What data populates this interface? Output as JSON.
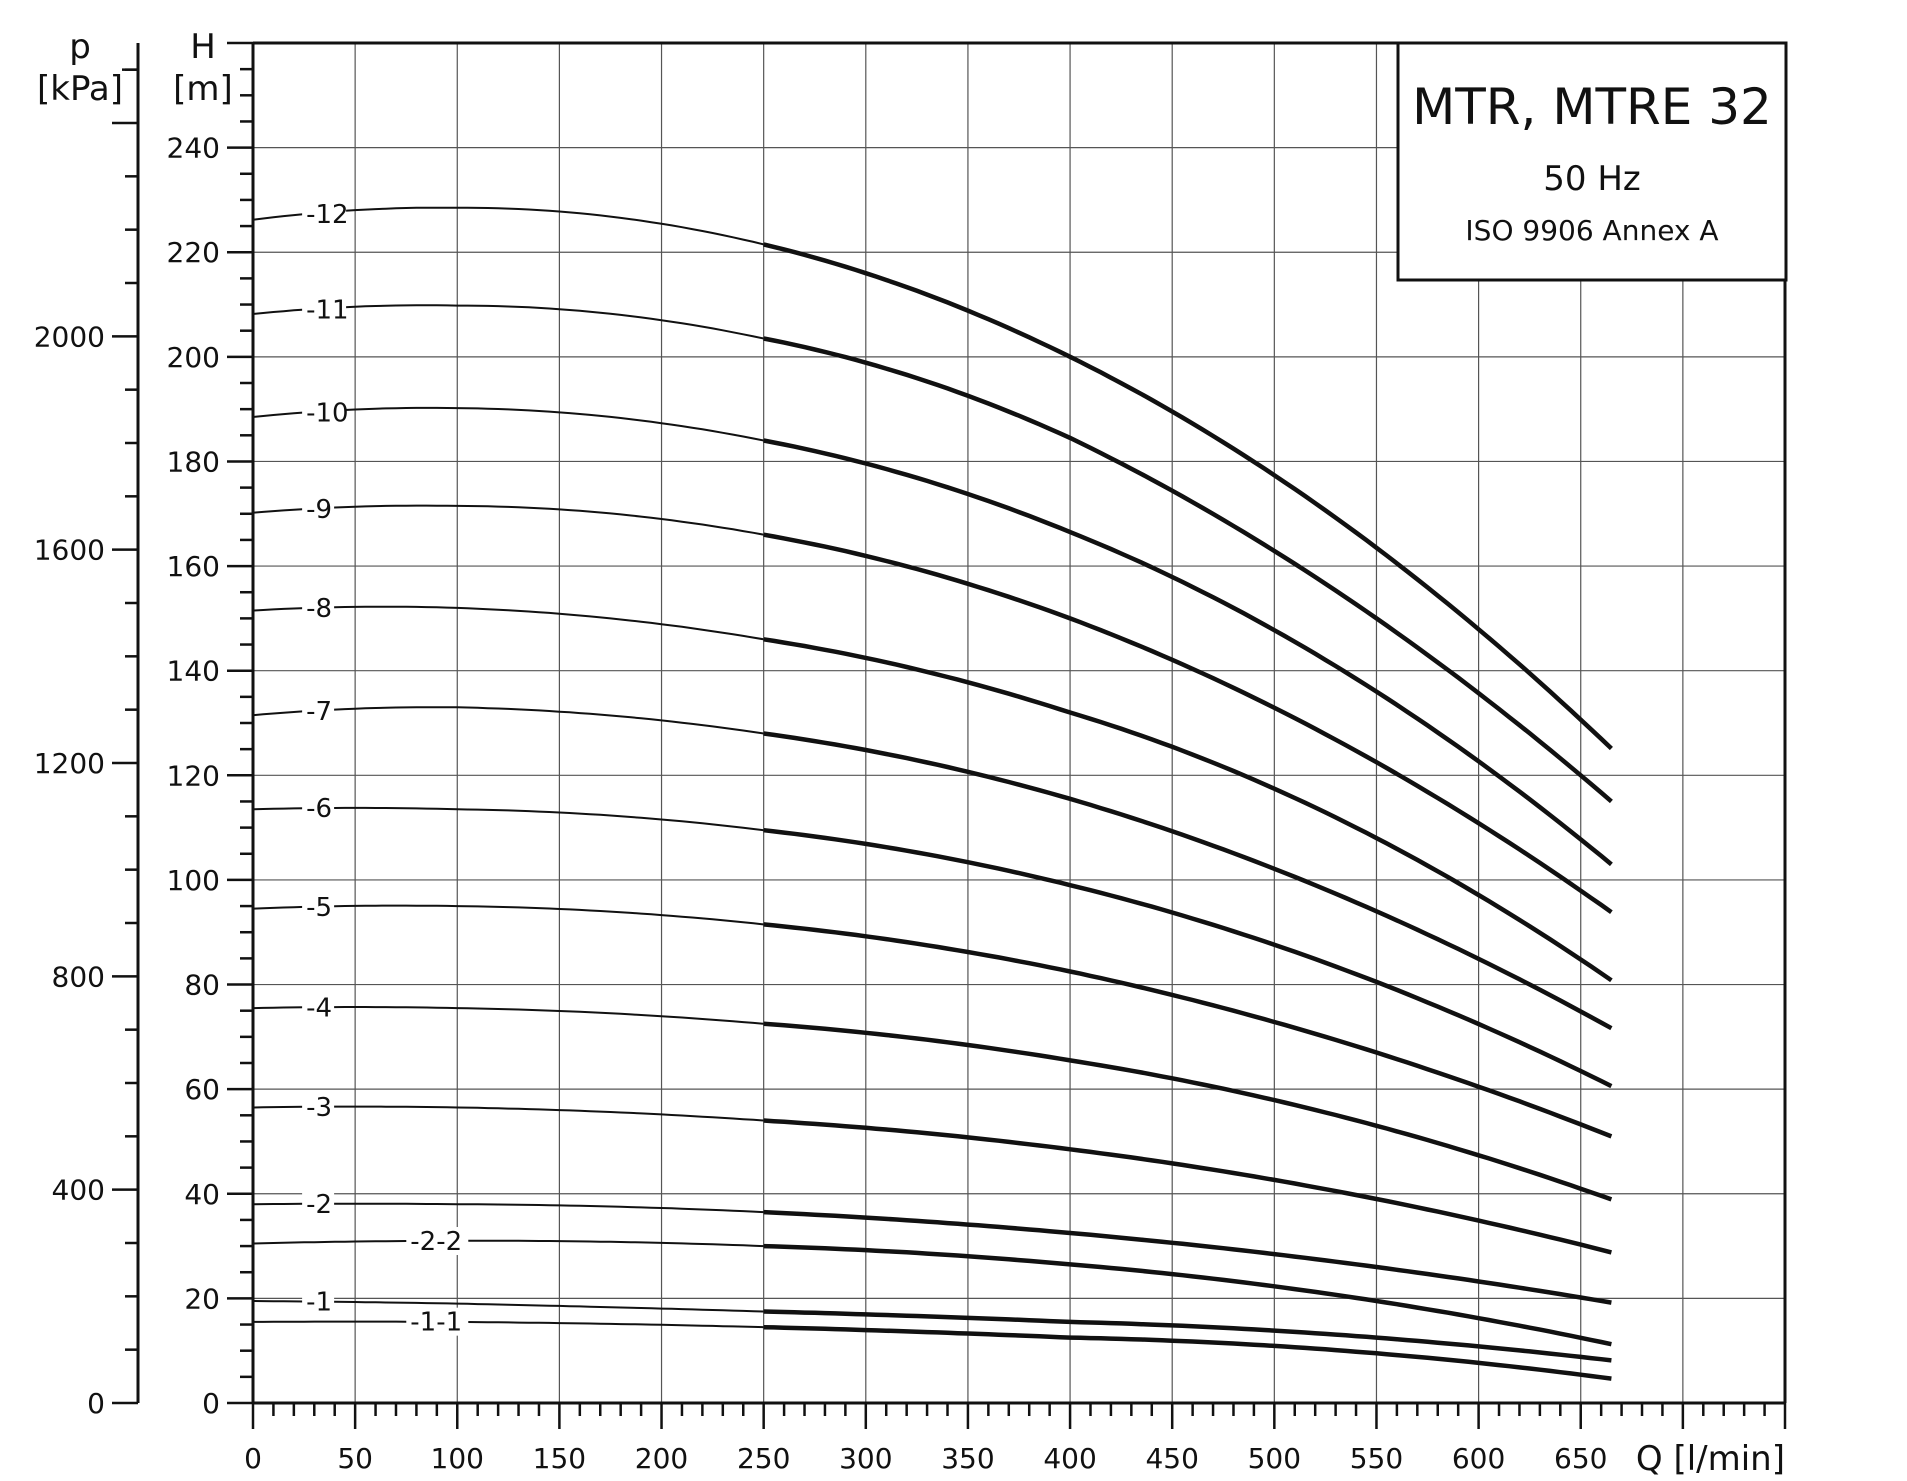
{
  "chart_data": {
    "type": "line",
    "title": "MTR, MTRE 32",
    "subtitle": "50 Hz",
    "note": "ISO 9906 Annex A",
    "xlabel": "Q [l/min]",
    "ylabel": "H\n[m]",
    "y2label": "p\n[kPa]",
    "xlim": [
      0,
      750
    ],
    "ylim": [
      0,
      260
    ],
    "y2lim": [
      0,
      2550
    ],
    "grid": true,
    "x_ticks": [
      0,
      50,
      100,
      150,
      200,
      250,
      300,
      350,
      400,
      450,
      500,
      550,
      600,
      650
    ],
    "y_ticks": [
      0,
      20,
      40,
      60,
      80,
      100,
      120,
      140,
      160,
      180,
      200,
      220,
      240
    ],
    "y2_ticks": [
      0,
      400,
      800,
      1200,
      1600,
      2000
    ],
    "series": [
      {
        "name": "-12",
        "x": [
          0,
          100,
          250,
          400,
          550,
          668
        ],
        "y": [
          226.2,
          228.5,
          221.5,
          200,
          163.5,
          124
        ]
      },
      {
        "name": "-11",
        "x": [
          0,
          100,
          250,
          400,
          550,
          668
        ],
        "y": [
          208.2,
          209.8,
          203.5,
          184.5,
          150,
          114
        ]
      },
      {
        "name": "-10",
        "x": [
          0,
          100,
          250,
          400,
          550,
          668
        ],
        "y": [
          188.5,
          190.2,
          184,
          166.5,
          136,
          102
        ]
      },
      {
        "name": "-9",
        "x": [
          0,
          100,
          250,
          400,
          550,
          668
        ],
        "y": [
          170.2,
          171.5,
          166,
          150,
          122.5,
          93
        ]
      },
      {
        "name": "-8",
        "x": [
          0,
          100,
          250,
          400,
          550,
          668
        ],
        "y": [
          151.5,
          152,
          146,
          132,
          108,
          80
        ]
      },
      {
        "name": "-7",
        "x": [
          0,
          100,
          250,
          400,
          550,
          668
        ],
        "y": [
          131.5,
          133,
          128,
          115.5,
          94,
          71
        ]
      },
      {
        "name": "-6",
        "x": [
          0,
          100,
          250,
          400,
          550,
          668
        ],
        "y": [
          113.5,
          113.5,
          109.5,
          99,
          80.5,
          60
        ]
      },
      {
        "name": "-5",
        "x": [
          0,
          100,
          250,
          400,
          550,
          668
        ],
        "y": [
          94.5,
          95,
          91.5,
          82.5,
          67,
          50.5
        ]
      },
      {
        "name": "-4",
        "x": [
          0,
          100,
          250,
          400,
          550,
          668
        ],
        "y": [
          75.5,
          75.5,
          72.5,
          65.5,
          53,
          38.5
        ]
      },
      {
        "name": "-3",
        "x": [
          0,
          100,
          250,
          400,
          550,
          668
        ],
        "y": [
          56.5,
          56.5,
          54,
          48.5,
          39,
          28.5
        ]
      },
      {
        "name": "-2",
        "x": [
          0,
          100,
          250,
          400,
          550,
          668
        ],
        "y": [
          38,
          38,
          36.5,
          32.5,
          26,
          19
        ]
      },
      {
        "name": "-2-2",
        "x": [
          0,
          100,
          250,
          400,
          550,
          668
        ],
        "y": [
          30.5,
          31,
          30,
          26.5,
          19.5,
          11
        ]
      },
      {
        "name": "-1",
        "x": [
          0,
          100,
          250,
          400,
          550,
          668
        ],
        "y": [
          19.5,
          19,
          17.5,
          15.5,
          12.5,
          8
        ]
      },
      {
        "name": "-1-1",
        "x": [
          0,
          100,
          250,
          400,
          550,
          668
        ],
        "y": [
          15.5,
          15.5,
          14.5,
          12.5,
          9.5,
          4.5
        ]
      }
    ]
  }
}
